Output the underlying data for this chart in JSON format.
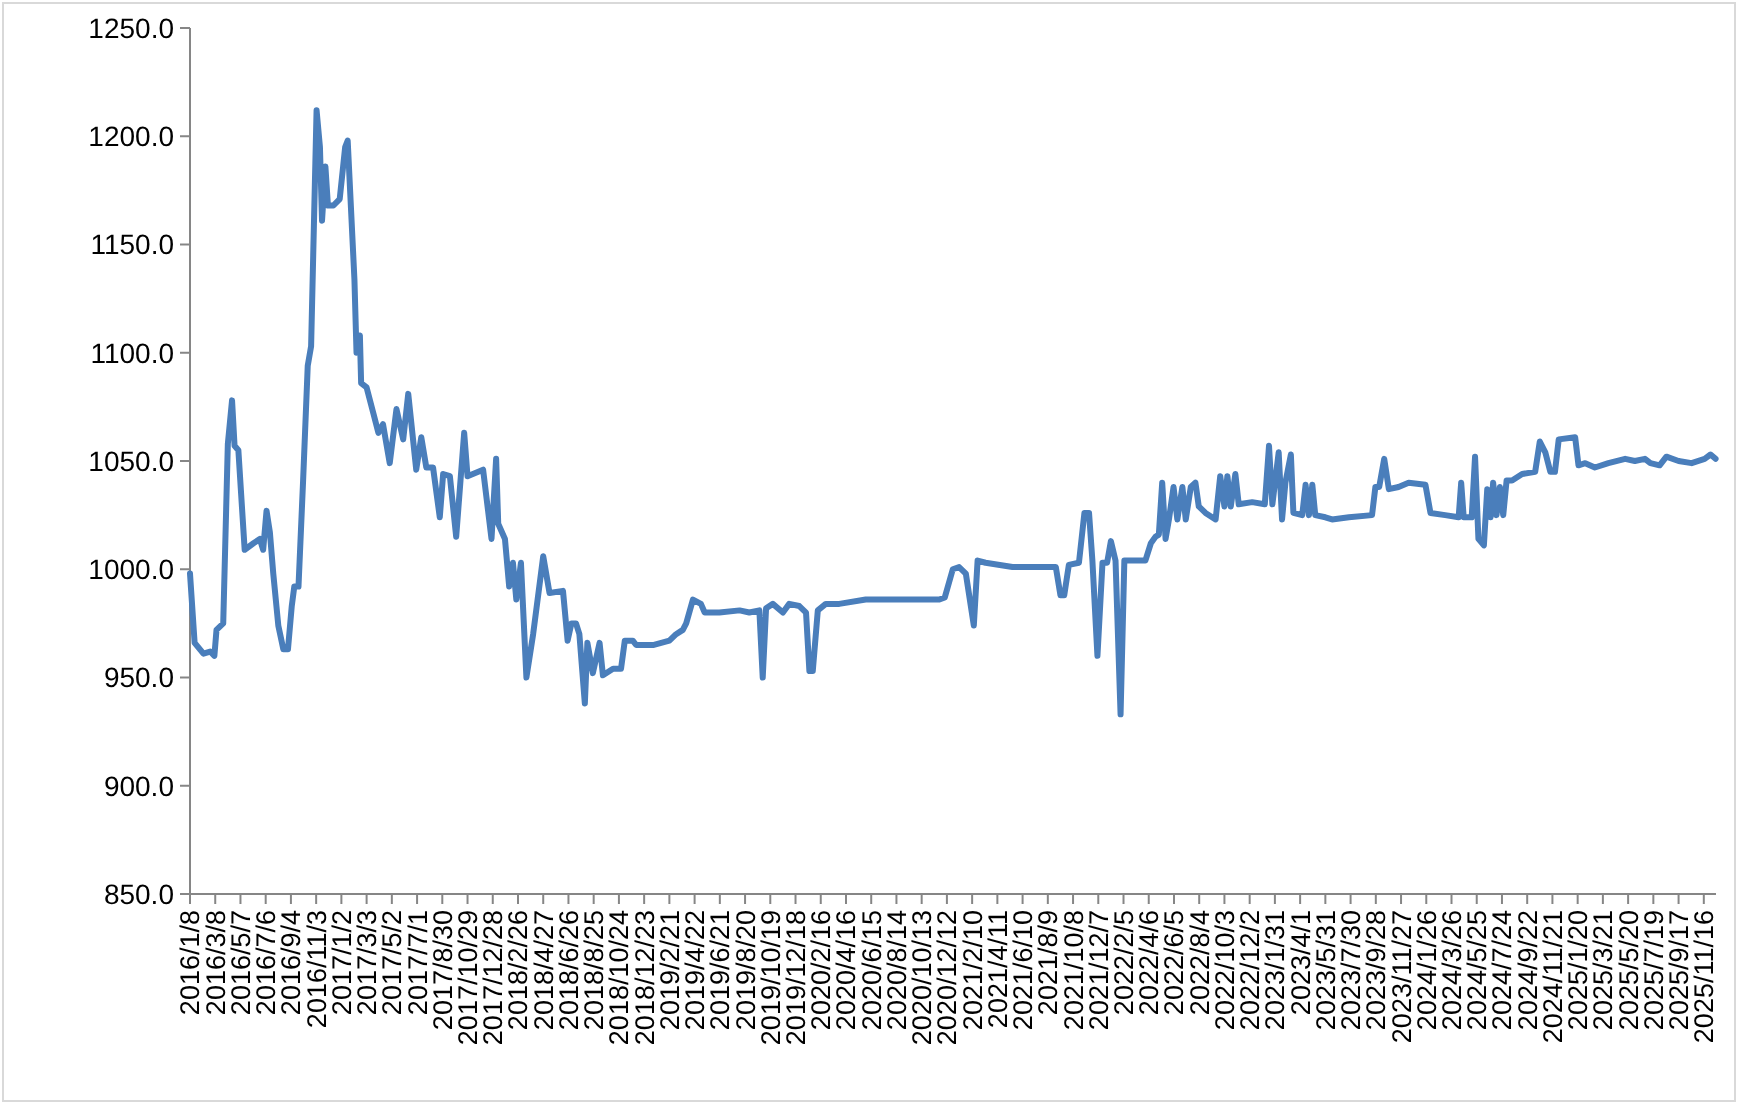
{
  "chart_data": {
    "type": "line",
    "color": "#4a7ebb",
    "x": [
      "2016-01-08",
      "2016-01-19",
      "2016-02-09",
      "2016-02-25",
      "2016-03-06",
      "2016-03-11",
      "2016-03-27",
      "2016-04-07",
      "2016-04-17",
      "2016-04-23",
      "2016-05-02",
      "2016-05-17",
      "2016-06-07",
      "2016-06-22",
      "2016-06-30",
      "2016-07-08",
      "2016-07-16",
      "2016-07-24",
      "2016-08-05",
      "2016-08-17",
      "2016-08-28",
      "2016-09-06",
      "2016-09-12",
      "2016-09-22",
      "2016-10-03",
      "2016-10-14",
      "2016-10-22",
      "2016-11-04",
      "2016-11-12",
      "2016-11-17",
      "2016-11-25",
      "2016-12-01",
      "2016-12-14",
      "2016-12-29",
      "2017-01-11",
      "2017-01-17",
      "2017-02-02",
      "2017-02-07",
      "2017-02-15",
      "2017-02-18",
      "2017-03-03",
      "2017-03-19",
      "2017-03-31",
      "2017-04-11",
      "2017-04-27",
      "2017-05-13",
      "2017-05-29",
      "2017-06-10",
      "2017-06-29",
      "2017-07-11",
      "2017-07-23",
      "2017-08-08",
      "2017-08-24",
      "2017-09-01",
      "2017-09-17",
      "2017-10-02",
      "2017-10-21",
      "2017-10-29",
      "2017-12-05",
      "2017-12-25",
      "2018-01-05",
      "2018-01-10",
      "2018-01-26",
      "2018-02-05",
      "2018-02-14",
      "2018-02-22",
      "2018-03-05",
      "2018-03-18",
      "2018-04-03",
      "2018-04-27",
      "2018-05-12",
      "2018-06-13",
      "2018-06-24",
      "2018-07-03",
      "2018-07-14",
      "2018-07-22",
      "2018-08-04",
      "2018-08-10",
      "2018-08-23",
      "2018-09-08",
      "2018-09-16",
      "2018-10-10",
      "2018-10-29",
      "2018-11-07",
      "2018-11-26",
      "2018-12-04",
      "2019-01-13",
      "2019-02-21",
      "2019-03-09",
      "2019-03-25",
      "2019-04-02",
      "2019-04-18",
      "2019-05-07",
      "2019-05-16",
      "2019-06-20",
      "2019-08-07",
      "2019-08-30",
      "2019-09-23",
      "2019-10-01",
      "2019-10-09",
      "2019-10-25",
      "2019-11-18",
      "2019-12-03",
      "2019-12-27",
      "2020-01-12",
      "2020-01-20",
      "2020-01-28",
      "2020-02-09",
      "2020-02-28",
      "2020-03-31",
      "2020-06-02",
      "2020-08-21",
      "2020-11-24",
      "2020-12-07",
      "2020-12-26",
      "2021-01-10",
      "2021-01-26",
      "2021-02-14",
      "2021-02-23",
      "2021-03-14",
      "2021-05-17",
      "2021-07-19",
      "2021-08-28",
      "2021-09-08",
      "2021-09-17",
      "2021-09-28",
      "2021-10-22",
      "2021-11-04",
      "2021-11-15",
      "2021-11-23",
      "2021-12-05",
      "2021-12-17",
      "2021-12-28",
      "2022-01-06",
      "2022-01-17",
      "2022-01-29",
      "2022-02-07",
      "2022-03-29",
      "2022-04-11",
      "2022-04-22",
      "2022-04-30",
      "2022-05-08",
      "2022-05-16",
      "2022-05-24",
      "2022-06-04",
      "2022-06-13",
      "2022-06-25",
      "2022-07-03",
      "2022-07-15",
      "2022-07-26",
      "2022-08-03",
      "2022-08-19",
      "2022-09-12",
      "2022-09-23",
      "2022-10-03",
      "2022-10-10",
      "2022-10-18",
      "2022-10-29",
      "2022-11-06",
      "2022-12-08",
      "2023-01-07",
      "2023-01-17",
      "2023-01-25",
      "2023-02-09",
      "2023-02-17",
      "2023-02-25",
      "2023-03-10",
      "2023-03-16",
      "2023-04-06",
      "2023-04-14",
      "2023-04-22",
      "2023-04-30",
      "2023-05-07",
      "2023-05-31",
      "2023-06-16",
      "2023-07-26",
      "2023-09-19",
      "2023-09-27",
      "2023-10-06",
      "2023-10-18",
      "2023-10-29",
      "2023-11-21",
      "2023-12-15",
      "2024-01-24",
      "2024-02-05",
      "2024-03-11",
      "2024-04-12",
      "2024-04-18",
      "2024-04-24",
      "2024-05-13",
      "2024-05-21",
      "2024-05-29",
      "2024-06-11",
      "2024-06-19",
      "2024-06-27",
      "2024-07-03",
      "2024-07-11",
      "2024-07-19",
      "2024-07-27",
      "2024-08-04",
      "2024-08-17",
      "2024-09-10",
      "2024-10-11",
      "2024-10-22",
      "2024-11-04",
      "2024-11-16",
      "2024-11-27",
      "2024-12-06",
      "2025-01-14",
      "2025-01-22",
      "2025-02-07",
      "2025-03-02",
      "2025-04-03",
      "2025-05-13",
      "2025-06-05",
      "2025-06-29",
      "2025-07-12",
      "2025-08-03",
      "2025-08-19",
      "2025-09-17",
      "2025-10-18",
      "2025-11-18",
      "2025-12-02",
      "2025-12-14"
    ],
    "values": [
      998,
      966,
      961,
      962,
      960,
      972,
      975,
      1058,
      1078,
      1057,
      1055,
      1009,
      1012,
      1014,
      1009,
      1027,
      1017,
      998,
      974,
      963,
      963,
      983,
      992,
      992,
      1041,
      1094,
      1103,
      1212,
      1195,
      1161,
      1186,
      1168,
      1168,
      1171,
      1195,
      1198,
      1134,
      1100,
      1108,
      1086,
      1084,
      1072,
      1063,
      1067,
      1049,
      1074,
      1060,
      1081,
      1046,
      1061,
      1047,
      1047,
      1024,
      1044,
      1043,
      1015,
      1063,
      1043,
      1046,
      1014,
      1051,
      1021,
      1014,
      992,
      1003,
      986,
      1003,
      950,
      970,
      1006,
      989,
      990,
      967,
      975,
      975,
      970,
      938,
      966,
      952,
      966,
      951,
      954,
      954,
      967,
      967,
      965,
      965,
      967,
      970,
      972,
      975,
      986,
      984,
      980,
      980,
      981,
      980,
      981,
      950,
      982,
      984,
      980,
      984,
      983,
      980,
      953,
      953,
      981,
      984,
      984,
      986,
      986,
      986,
      987,
      1000,
      1001,
      998,
      974,
      1004,
      1003,
      1001,
      1001,
      1001,
      988,
      988,
      1002,
      1003,
      1026,
      1026,
      1004,
      960,
      1003,
      1003,
      1013,
      1004,
      933,
      1004,
      1004,
      1012,
      1015,
      1016,
      1040,
      1014,
      1023,
      1038,
      1023,
      1038,
      1023,
      1038,
      1040,
      1029,
      1026,
      1023,
      1043,
      1029,
      1043,
      1029,
      1044,
      1030,
      1031,
      1030,
      1057,
      1030,
      1054,
      1023,
      1040,
      1053,
      1026,
      1025,
      1039,
      1025,
      1039,
      1025,
      1024,
      1023,
      1024,
      1025,
      1038,
      1038,
      1051,
      1037,
      1038,
      1040,
      1039,
      1026,
      1025,
      1024,
      1040,
      1024,
      1024,
      1052,
      1014,
      1011,
      1037,
      1024,
      1040,
      1025,
      1038,
      1025,
      1041,
      1041,
      1044,
      1045,
      1059,
      1054,
      1045,
      1045,
      1060,
      1061,
      1048,
      1049,
      1047,
      1049,
      1051,
      1050,
      1051,
      1049,
      1048,
      1052,
      1050,
      1049,
      1051,
      1053,
      1051
    ],
    "xlim": [
      "2016-01-08",
      "2025-12-15"
    ],
    "xticks": [
      {
        "value": "2016-01-08",
        "label": "2016/1/8"
      },
      {
        "value": "2016-03-08",
        "label": "2016/3/8"
      },
      {
        "value": "2016-05-07",
        "label": "2016/5/7"
      },
      {
        "value": "2016-07-06",
        "label": "2016/7/6"
      },
      {
        "value": "2016-09-04",
        "label": "2016/9/4"
      },
      {
        "value": "2016-11-03",
        "label": "2016/11/3"
      },
      {
        "value": "2017-01-02",
        "label": "2017/1/2"
      },
      {
        "value": "2017-03-03",
        "label": "2017/3/3"
      },
      {
        "value": "2017-05-02",
        "label": "2017/5/2"
      },
      {
        "value": "2017-07-01",
        "label": "2017/7/1"
      },
      {
        "value": "2017-08-30",
        "label": "2017/8/30"
      },
      {
        "value": "2017-10-29",
        "label": "2017/10/29"
      },
      {
        "value": "2017-12-28",
        "label": "2017/12/28"
      },
      {
        "value": "2018-02-26",
        "label": "2018/2/26"
      },
      {
        "value": "2018-04-27",
        "label": "2018/4/27"
      },
      {
        "value": "2018-06-26",
        "label": "2018/6/26"
      },
      {
        "value": "2018-08-25",
        "label": "2018/8/25"
      },
      {
        "value": "2018-10-24",
        "label": "2018/10/24"
      },
      {
        "value": "2018-12-23",
        "label": "2018/12/23"
      },
      {
        "value": "2019-02-21",
        "label": "2019/2/21"
      },
      {
        "value": "2019-04-22",
        "label": "2019/4/22"
      },
      {
        "value": "2019-06-21",
        "label": "2019/6/21"
      },
      {
        "value": "2019-08-20",
        "label": "2019/8/20"
      },
      {
        "value": "2019-10-19",
        "label": "2019/10/19"
      },
      {
        "value": "2019-12-18",
        "label": "2019/12/18"
      },
      {
        "value": "2020-02-16",
        "label": "2020/2/16"
      },
      {
        "value": "2020-04-16",
        "label": "2020/4/16"
      },
      {
        "value": "2020-06-15",
        "label": "2020/6/15"
      },
      {
        "value": "2020-08-14",
        "label": "2020/8/14"
      },
      {
        "value": "2020-10-13",
        "label": "2020/10/13"
      },
      {
        "value": "2020-12-12",
        "label": "2020/12/12"
      },
      {
        "value": "2021-02-10",
        "label": "2021/2/10"
      },
      {
        "value": "2021-04-11",
        "label": "2021/4/11"
      },
      {
        "value": "2021-06-10",
        "label": "2021/6/10"
      },
      {
        "value": "2021-08-09",
        "label": "2021/8/9"
      },
      {
        "value": "2021-10-08",
        "label": "2021/10/8"
      },
      {
        "value": "2021-12-07",
        "label": "2021/12/7"
      },
      {
        "value": "2022-02-05",
        "label": "2022/2/5"
      },
      {
        "value": "2022-04-06",
        "label": "2022/4/6"
      },
      {
        "value": "2022-06-05",
        "label": "2022/6/5"
      },
      {
        "value": "2022-08-04",
        "label": "2022/8/4"
      },
      {
        "value": "2022-10-03",
        "label": "2022/10/3"
      },
      {
        "value": "2022-12-02",
        "label": "2022/12/2"
      },
      {
        "value": "2023-01-31",
        "label": "2023/1/31"
      },
      {
        "value": "2023-04-01",
        "label": "2023/4/1"
      },
      {
        "value": "2023-05-31",
        "label": "2023/5/31"
      },
      {
        "value": "2023-07-30",
        "label": "2023/7/30"
      },
      {
        "value": "2023-09-28",
        "label": "2023/9/28"
      },
      {
        "value": "2023-11-27",
        "label": "2023/11/27"
      },
      {
        "value": "2024-01-26",
        "label": "2024/1/26"
      },
      {
        "value": "2024-03-26",
        "label": "2024/3/26"
      },
      {
        "value": "2024-05-25",
        "label": "2024/5/25"
      },
      {
        "value": "2024-07-24",
        "label": "2024/7/24"
      },
      {
        "value": "2024-09-22",
        "label": "2024/9/22"
      },
      {
        "value": "2024-11-21",
        "label": "2024/11/21"
      },
      {
        "value": "2025-01-20",
        "label": "2025/1/20"
      },
      {
        "value": "2025-03-21",
        "label": "2025/3/21"
      },
      {
        "value": "2025-05-20",
        "label": "2025/5/20"
      },
      {
        "value": "2025-07-19",
        "label": "2025/7/19"
      },
      {
        "value": "2025-09-17",
        "label": "2025/9/17"
      },
      {
        "value": "2025-11-16",
        "label": "2025/11/16"
      }
    ],
    "ylim": [
      850,
      1250
    ],
    "yticks": [
      {
        "value": 850,
        "label": "850.0"
      },
      {
        "value": 900,
        "label": "900.0"
      },
      {
        "value": 950,
        "label": "950.0"
      },
      {
        "value": 1000,
        "label": "1000.0"
      },
      {
        "value": 1050,
        "label": "1050.0"
      },
      {
        "value": 1100,
        "label": "1100.0"
      },
      {
        "value": 1150,
        "label": "1150.0"
      },
      {
        "value": 1200,
        "label": "1200.0"
      },
      {
        "value": 1250,
        "label": "1250.0"
      }
    ]
  }
}
